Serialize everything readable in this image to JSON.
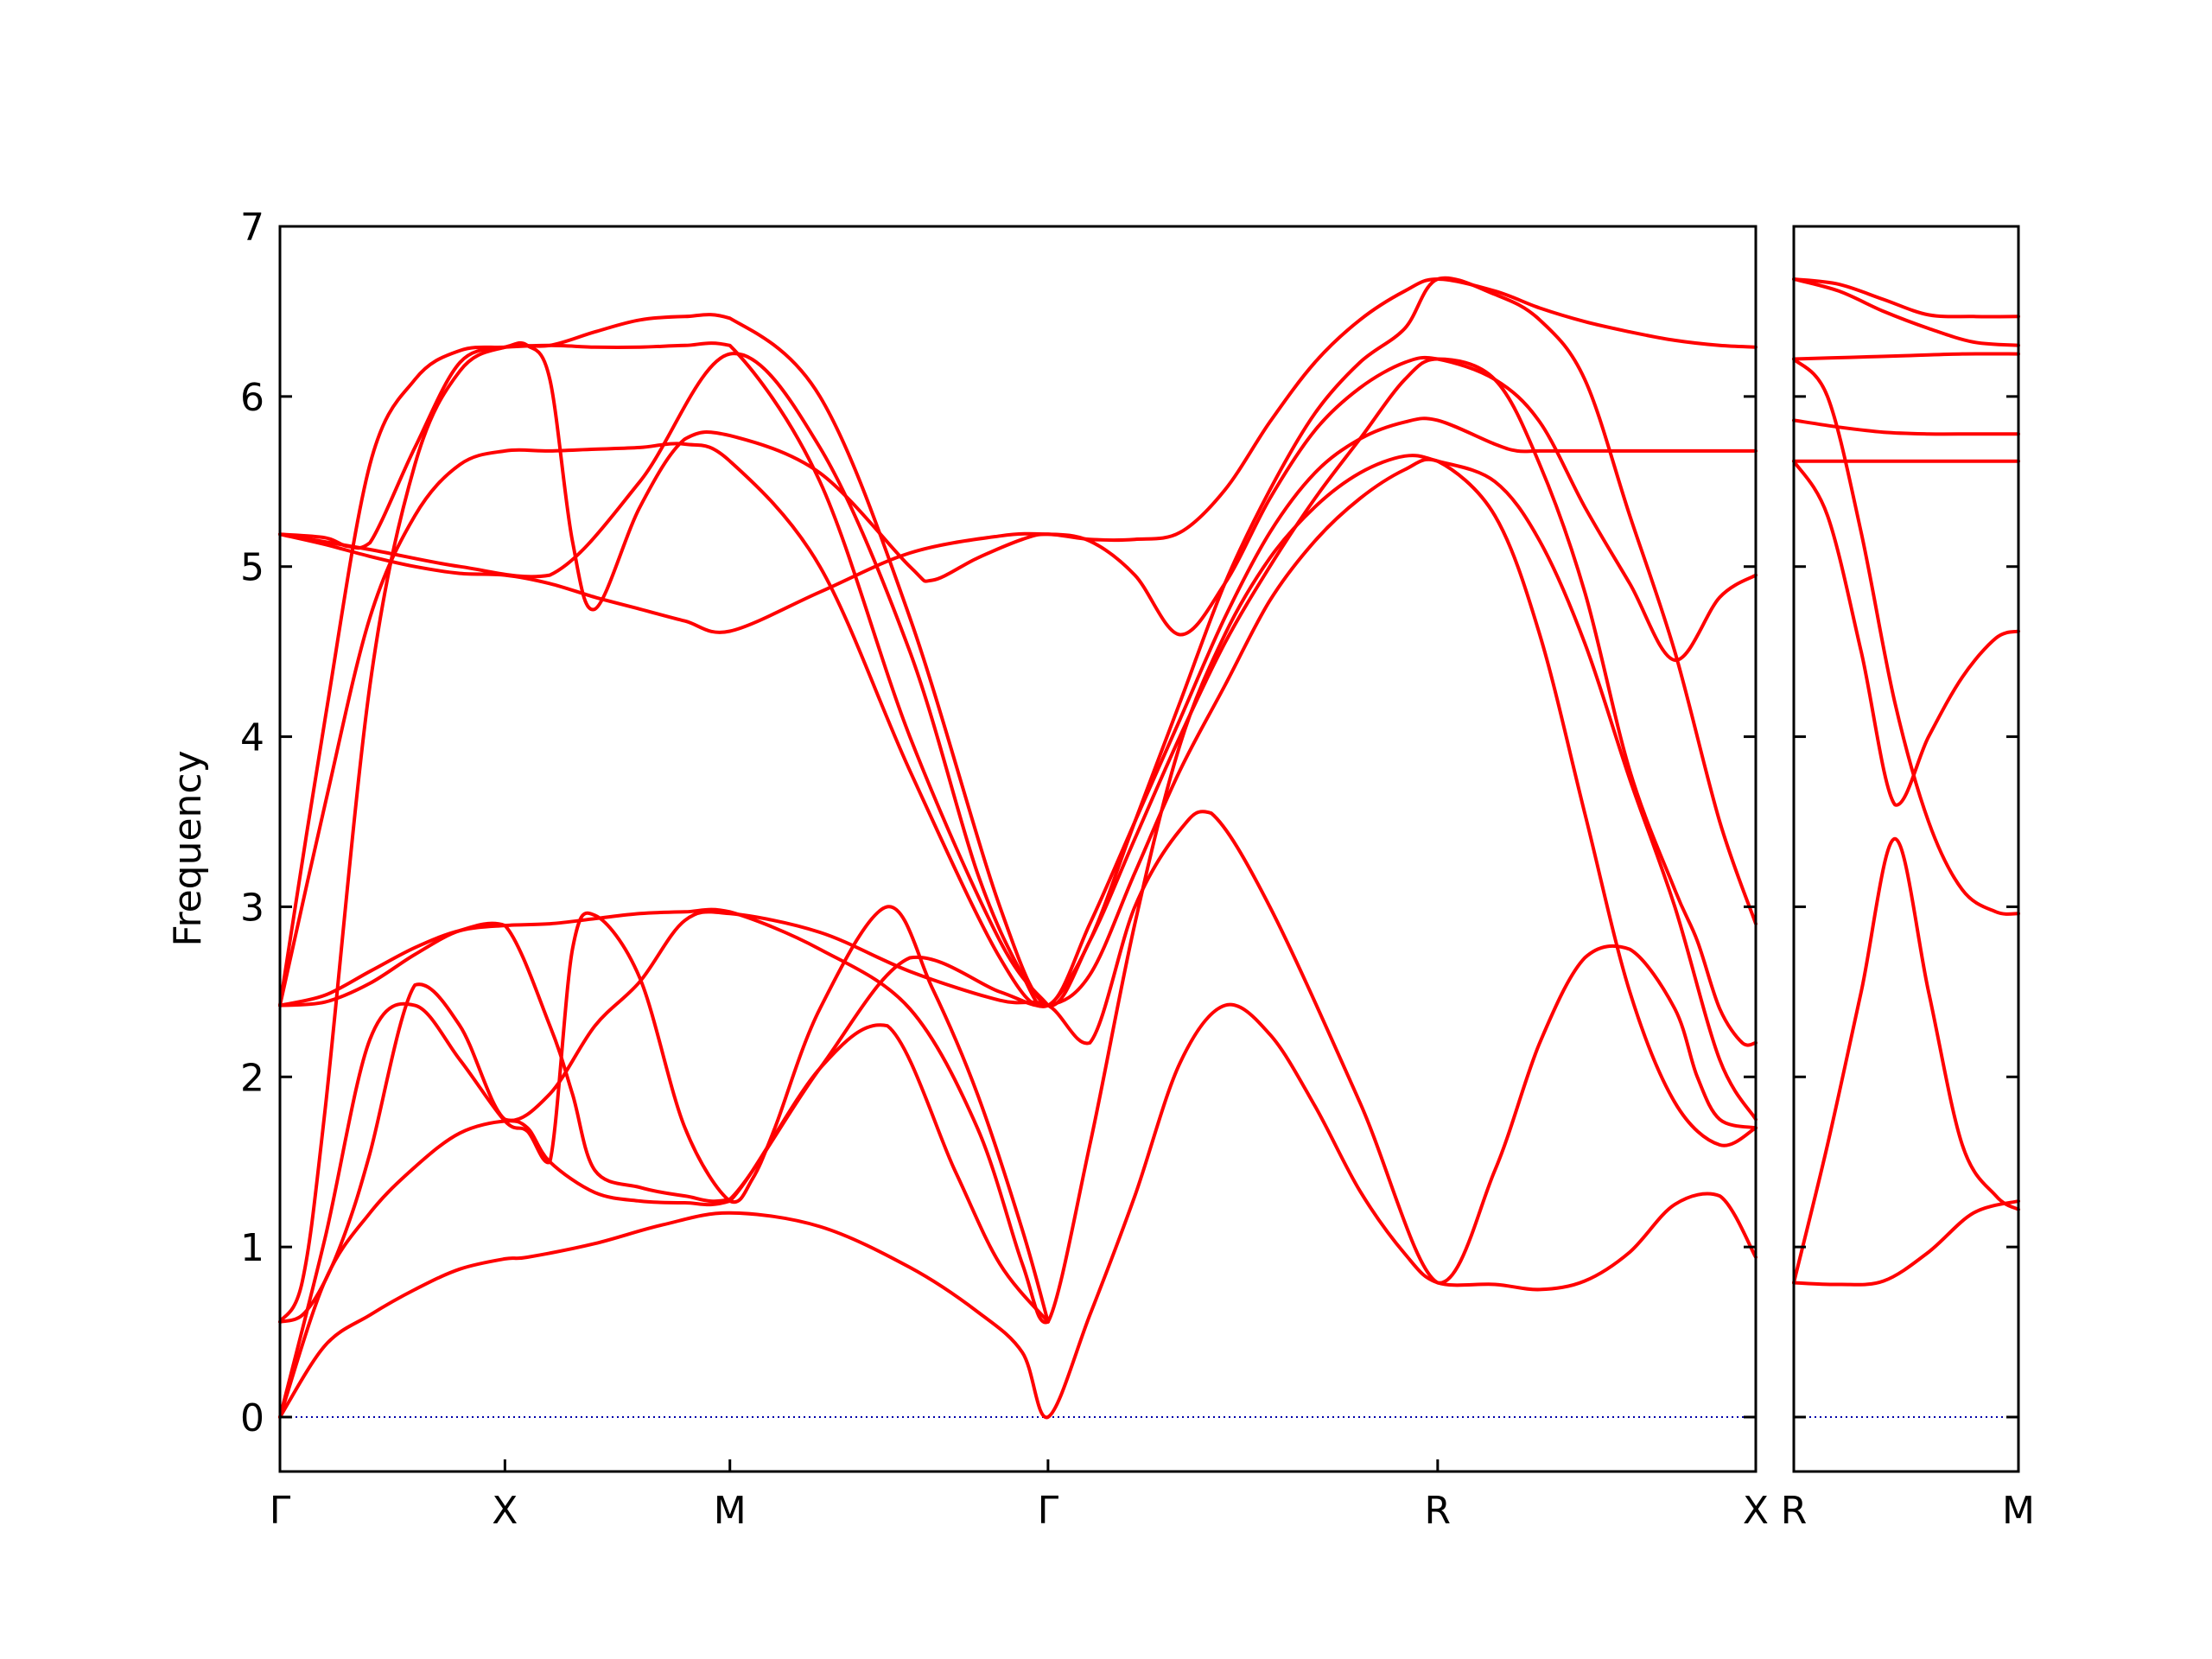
{
  "chart_data": {
    "type": "line",
    "title": "",
    "ylabel": "Frequency",
    "ylim": [
      -0.32,
      7
    ],
    "y_ticks": [
      "0",
      "1",
      "2",
      "3",
      "4",
      "5",
      "6",
      "7"
    ],
    "grid": false,
    "colors": {
      "band": "#ff0000",
      "zero_line": "#0000aa",
      "axis": "#000000"
    },
    "panels": [
      {
        "kpath_labels": [
          "Γ",
          "X",
          "M",
          "Γ",
          "R",
          "X"
        ],
        "kpath_positions": [
          0,
          0.5,
          1.0,
          1.707,
          2.573,
          3.28
        ],
        "bands": [
          {
            "name": "",
            "x": [
              0,
              0.1,
              0.2,
              0.3,
              0.4,
              0.5,
              0.55,
              0.7,
              0.85,
              1.0,
              1.2,
              1.4,
              1.55,
              1.65,
              1.707,
              1.8,
              1.9,
              2.0,
              2.1,
              2.2,
              2.3,
              2.4,
              2.5,
              2.573,
              2.7,
              2.8,
              2.9,
              3.0,
              3.1,
              3.2,
              3.28
            ],
            "y": [
              0,
              0.42,
              0.6,
              0.75,
              0.87,
              0.93,
              0.94,
              1.02,
              1.13,
              1.2,
              1.12,
              0.88,
              0.62,
              0.38,
              0,
              0.6,
              1.3,
              2.08,
              2.42,
              2.25,
              1.83,
              1.33,
              0.96,
              0.79,
              0.78,
              0.75,
              0.8,
              0.97,
              1.25,
              1.3,
              0.94
            ]
          },
          {
            "name": "",
            "x": [
              0,
              0.1,
              0.2,
              0.3,
              0.4,
              0.5,
              0.55,
              0.6,
              0.7,
              0.8,
              0.9,
              1.0,
              1.2,
              1.35,
              1.5,
              1.6,
              1.707
            ],
            "y": [
              0,
              0.8,
              1.2,
              1.47,
              1.67,
              1.74,
              1.7,
              1.5,
              1.32,
              1.27,
              1.26,
              1.27,
              2.05,
              2.3,
              1.45,
              0.9,
              0.56
            ]
          },
          {
            "name": "",
            "x": [
              0,
              0.1,
              0.2,
              0.3,
              0.4,
              0.5,
              0.55,
              0.6,
              0.65,
              0.7,
              0.8,
              0.9,
              1.0,
              1.05,
              1.1,
              1.2,
              1.35,
              1.45,
              1.55,
              1.65,
              1.707
            ],
            "y": [
              0,
              1.05,
              2.22,
              2.42,
              2.1,
              1.74,
              1.68,
              1.5,
              2.75,
              2.95,
              2.58,
              1.7,
              1.27,
              1.4,
              1.7,
              2.4,
              3.0,
              2.52,
              1.9,
              1.1,
              0.56
            ]
          },
          {
            "name": "",
            "x": [
              0,
              0.05,
              0.1,
              0.15,
              0.2,
              0.3,
              0.4,
              0.5,
              0.6,
              0.7,
              0.8,
              0.9,
              1.0,
              1.2,
              1.4,
              1.6,
              1.707,
              1.8,
              1.9,
              2.0,
              2.07,
              2.2,
              2.4,
              2.573,
              2.7,
              2.8,
              2.9,
              3.0,
              3.1,
              3.15,
              3.2,
              3.28
            ],
            "y": [
              0.56,
              0.6,
              0.8,
              1.12,
              1.55,
              2.54,
              2.3,
              1.75,
              1.9,
              2.3,
              2.56,
              2.92,
              2.96,
              2.85,
              2.62,
              2.45,
              2.42,
              2.2,
              3.0,
              3.45,
              3.55,
              3.0,
              1.85,
              0.79,
              1.45,
              2.2,
              2.7,
              2.75,
              2.4,
              2.0,
              1.75,
              1.7
            ]
          },
          {
            "name": "",
            "x": [
              0,
              0.05,
              0.1,
              0.2,
              0.3,
              0.4,
              0.5,
              0.6,
              0.7,
              0.8,
              0.9,
              1.0,
              1.2,
              1.4,
              1.6,
              1.707,
              1.8,
              1.9,
              2.0,
              2.1,
              2.2,
              2.3,
              2.4,
              2.5,
              2.573,
              2.7,
              2.8,
              2.9,
              3.0,
              3.1,
              3.15,
              3.2,
              3.25,
              3.28
            ],
            "y": [
              0.56,
              0.8,
              1.8,
              4.3,
              5.6,
              6.15,
              6.29,
              6.3,
              6.38,
              6.45,
              6.47,
              6.46,
              6.0,
              4.7,
              3.0,
              2.42,
              2.8,
              3.4,
              4.0,
              4.55,
              5.0,
              5.4,
              5.75,
              6.1,
              6.22,
              6.1,
              5.6,
              4.85,
              3.8,
              3.1,
              2.8,
              2.4,
              2.2,
              2.2
            ]
          },
          {
            "name": "",
            "x": [
              0,
              0.1,
              0.2,
              0.3,
              0.4,
              0.5,
              0.6,
              0.7,
              0.8,
              0.9,
              1.0,
              1.2,
              1.4,
              1.55,
              1.65,
              1.707,
              1.8,
              1.9,
              2.0,
              2.1,
              2.2,
              2.3,
              2.4,
              2.5,
              2.573,
              2.7,
              2.8,
              2.9,
              3.0,
              3.1,
              3.2,
              3.28
            ],
            "y": [
              2.42,
              2.48,
              2.62,
              2.76,
              2.86,
              2.89,
              2.9,
              2.93,
              2.96,
              2.97,
              2.97,
              2.75,
              2.4,
              1.7,
              0.9,
              0.56,
              1.6,
              2.9,
              3.95,
              4.6,
              5.05,
              5.35,
              5.55,
              5.65,
              5.62,
              5.5,
              5.15,
              4.55,
              3.75,
              3.0,
              2.1,
              1.75
            ]
          },
          {
            "name": "",
            "x": [
              0,
              0.1,
              0.2,
              0.3,
              0.4,
              0.5,
              0.6,
              0.65,
              0.7,
              0.8,
              0.9,
              1.0,
              1.2,
              1.4,
              1.6,
              1.707,
              1.8,
              1.9,
              2.0,
              2.1,
              2.2,
              2.3,
              2.4,
              2.5,
              2.573,
              2.7,
              2.8,
              2.9,
              3.0,
              3.1,
              3.2,
              3.28
            ],
            "y": [
              2.42,
              2.44,
              2.55,
              2.72,
              2.86,
              2.89,
              2.3,
              1.9,
              1.45,
              1.35,
              1.3,
              1.28,
              2.05,
              2.7,
              2.5,
              2.42,
              2.6,
              3.2,
              3.8,
              4.3,
              4.8,
              5.15,
              5.4,
              5.57,
              5.62,
              5.3,
              4.6,
              3.55,
              2.5,
              1.85,
              1.6,
              1.7
            ]
          },
          {
            "name": "",
            "x": [
              0,
              0.1,
              0.2,
              0.3,
              0.4,
              0.5,
              0.6,
              0.7,
              0.8,
              0.9,
              1.0,
              1.2,
              1.4,
              1.6,
              1.707
            ],
            "y": [
              2.42,
              4.1,
              5.6,
              6.1,
              6.27,
              6.29,
              6.3,
              6.29,
              6.29,
              6.3,
              6.3,
              5.5,
              4.0,
              2.8,
              2.42
            ]
          },
          {
            "name": "",
            "x": [
              0,
              0.1,
              0.2,
              0.3,
              0.4,
              0.5,
              0.6,
              0.7,
              0.8,
              0.9,
              1.0,
              1.2,
              1.4,
              1.6,
              1.707,
              1.8,
              1.9,
              2.0,
              2.1,
              2.2,
              2.3,
              2.4,
              2.5,
              2.573,
              2.7,
              2.8,
              2.9,
              3.0,
              3.1,
              3.2,
              3.28
            ],
            "y": [
              5.19,
              5.13,
              5.06,
              5.0,
              4.96,
              4.95,
              4.9,
              4.82,
              4.75,
              4.68,
              4.62,
              4.85,
              5.08,
              5.18,
              5.19,
              5.16,
              5.16,
              5.2,
              5.45,
              5.85,
              6.2,
              6.45,
              6.62,
              6.69,
              6.62,
              6.52,
              6.44,
              6.38,
              6.33,
              6.3,
              6.29
            ]
          },
          {
            "name": "",
            "x": [
              0,
              0.1,
              0.15,
              0.2,
              0.3,
              0.4,
              0.5,
              0.55,
              0.6,
              0.65,
              0.7,
              0.8,
              0.9,
              1.0,
              1.2,
              1.4,
              1.45,
              1.55,
              1.65,
              1.707,
              1.8,
              1.9,
              2.0,
              2.1,
              2.2,
              2.3,
              2.4,
              2.5,
              2.573,
              2.7,
              2.8,
              2.9,
              3.0,
              3.1,
              3.2,
              3.28
            ],
            "y": [
              5.19,
              5.17,
              5.12,
              5.14,
              5.7,
              6.2,
              6.29,
              6.3,
              6.1,
              5.15,
              4.75,
              5.35,
              5.75,
              5.77,
              5.55,
              5.0,
              4.92,
              5.05,
              5.16,
              5.19,
              5.15,
              4.95,
              4.6,
              4.9,
              5.4,
              5.8,
              6.05,
              6.2,
              6.22,
              6.1,
              5.85,
              5.35,
              4.9,
              4.45,
              4.82,
              4.95
            ]
          },
          {
            "name": "",
            "x": [
              0,
              0.1,
              0.2,
              0.3,
              0.4,
              0.5,
              0.6,
              0.7,
              0.8,
              0.9,
              1.0,
              1.2,
              1.4,
              1.6,
              1.707,
              1.8,
              1.9,
              2.0,
              2.1,
              2.2,
              2.3,
              2.4,
              2.5,
              2.573,
              2.7,
              2.75,
              2.8,
              2.9,
              3.0,
              3.1,
              3.2,
              3.28
            ],
            "y": [
              2.42,
              3.6,
              4.7,
              5.3,
              5.6,
              5.68,
              5.68,
              5.69,
              5.7,
              5.72,
              5.62,
              5.0,
              3.8,
              2.7,
              2.42,
              2.9,
              3.5,
              4.1,
              4.7,
              5.2,
              5.55,
              5.75,
              5.85,
              5.86,
              5.72,
              5.68,
              5.68,
              5.68,
              5.68,
              5.68,
              5.68,
              5.68
            ]
          },
          {
            "name": "",
            "x": [
              0,
              0.2,
              0.4,
              0.6,
              0.8,
              1.0,
              1.2,
              1.4,
              1.55,
              1.65,
              1.707,
              1.8,
              1.9,
              2.0,
              2.1,
              2.2,
              2.3,
              2.4,
              2.5,
              2.573,
              2.7,
              2.8,
              2.9,
              3.0,
              3.1,
              3.2,
              3.28
            ],
            "y": [
              5.19,
              5.1,
              5.0,
              4.95,
              5.5,
              6.25,
              5.7,
              4.5,
              3.2,
              2.6,
              2.42,
              2.8,
              3.5,
              4.2,
              4.9,
              5.45,
              5.9,
              6.2,
              6.4,
              6.69,
              6.6,
              6.45,
              6.1,
              5.3,
              4.5,
              3.5,
              2.9
            ]
          }
        ]
      },
      {
        "kpath_labels": [
          "R",
          "M"
        ],
        "kpath_positions": [
          0,
          1
        ],
        "bands": [
          {
            "name": "",
            "x": [
              0,
              0.2,
              0.4,
              0.6,
              0.8,
              1.0
            ],
            "y": [
              0.79,
              0.78,
              0.8,
              0.97,
              1.2,
              1.27
            ]
          },
          {
            "name": "",
            "x": [
              0,
              0.15,
              0.3,
              0.45,
              0.6,
              0.75,
              0.9,
              1.0
            ],
            "y": [
              0.79,
              1.6,
              2.5,
              3.4,
              2.5,
              1.6,
              1.3,
              1.22
            ]
          },
          {
            "name": "",
            "x": [
              0,
              0.15,
              0.3,
              0.45,
              0.6,
              0.75,
              0.9,
              1.0
            ],
            "y": [
              5.62,
              5.3,
              4.5,
              3.6,
              4.0,
              4.35,
              4.58,
              4.62
            ]
          },
          {
            "name": "",
            "x": [
              0,
              0.15,
              0.3,
              0.45,
              0.6,
              0.75,
              0.9,
              1.0
            ],
            "y": [
              6.22,
              6.0,
              5.2,
              4.2,
              3.5,
              3.1,
              2.97,
              2.96
            ]
          },
          {
            "name": "",
            "x": [
              0,
              0.2,
              0.4,
              0.6,
              0.8,
              1.0
            ],
            "y": [
              5.62,
              5.62,
              5.62,
              5.62,
              5.62,
              5.62
            ]
          },
          {
            "name": "",
            "x": [
              0,
              0.2,
              0.4,
              0.6,
              0.8,
              1.0
            ],
            "y": [
              5.86,
              5.82,
              5.79,
              5.78,
              5.78,
              5.78
            ]
          },
          {
            "name": "",
            "x": [
              0,
              0.25,
              0.5,
              0.75,
              1.0
            ],
            "y": [
              6.22,
              6.23,
              6.24,
              6.25,
              6.25
            ]
          },
          {
            "name": "",
            "x": [
              0,
              0.2,
              0.4,
              0.6,
              0.8,
              1.0
            ],
            "y": [
              6.69,
              6.62,
              6.5,
              6.4,
              6.32,
              6.3
            ]
          },
          {
            "name": "",
            "x": [
              0,
              0.2,
              0.4,
              0.6,
              0.8,
              1.0
            ],
            "y": [
              6.69,
              6.66,
              6.57,
              6.48,
              6.47,
              6.47
            ]
          }
        ]
      }
    ]
  }
}
